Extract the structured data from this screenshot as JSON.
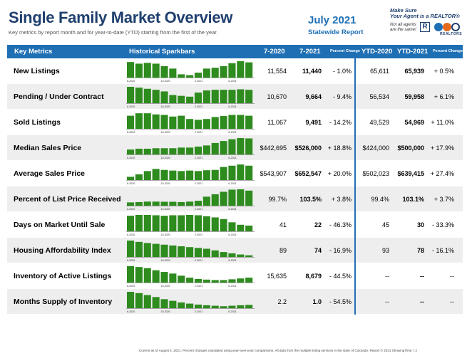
{
  "header": {
    "title": "Single Family Market Overview",
    "subtitle": "Key metrics by report month and for year-to-date (YTD) starting from the first of the year.",
    "report_month": "July 2021",
    "report_scope": "Statewide Report",
    "promo_line1": "Make Sure",
    "promo_line2": "Your Agent is a REALTOR®",
    "promo_line3": "Not all agents are the same!",
    "logo_r": "R",
    "logo_caar_caption": "REALTORS"
  },
  "columns": {
    "metric": "Key Metrics",
    "spark": "Historical Sparkbars",
    "m1": "7-2020",
    "m2": "7-2021",
    "pc": "Percent Change",
    "y1": "YTD-2020",
    "y2": "YTD-2021",
    "ypc": "Percent Change"
  },
  "spark_ticks": [
    "6-2020",
    "10-2020",
    "2-2021",
    "6-2021"
  ],
  "rows": [
    {
      "metric": "New Listings",
      "m1": "11,554",
      "m2": "11,440",
      "pc": "- 1.0%",
      "y1": "65,611",
      "y2": "65,939",
      "ypc": "+ 0.5%",
      "spark": [
        0.95,
        0.85,
        0.9,
        0.85,
        0.7,
        0.55,
        0.2,
        0.15,
        0.3,
        0.55,
        0.6,
        0.7,
        0.88,
        1.0,
        0.93
      ]
    },
    {
      "metric": "Pending / Under Contract",
      "m1": "10,670",
      "m2": "9,664",
      "pc": "- 9.4%",
      "y1": "56,534",
      "y2": "59,958",
      "ypc": "+ 6.1%",
      "spark": [
        1.0,
        0.95,
        0.88,
        0.82,
        0.72,
        0.5,
        0.45,
        0.4,
        0.65,
        0.78,
        0.82,
        0.82,
        0.82,
        0.85,
        0.82
      ]
    },
    {
      "metric": "Sold Listings",
      "m1": "11,067",
      "m2": "9,491",
      "pc": "- 14.2%",
      "y1": "49,529",
      "y2": "54,969",
      "ypc": "+ 11.0%",
      "spark": [
        0.8,
        0.95,
        0.95,
        0.88,
        0.85,
        0.75,
        0.8,
        0.6,
        0.55,
        0.6,
        0.72,
        0.78,
        0.85,
        0.85,
        0.8
      ]
    },
    {
      "metric": "Median Sales Price",
      "m1": "$442,695",
      "m2": "$526,000",
      "pc": "+ 18.8%",
      "y1": "$424,000",
      "y2": "$500,000",
      "ypc": "+ 17.9%",
      "spark": [
        0.3,
        0.35,
        0.35,
        0.38,
        0.38,
        0.38,
        0.42,
        0.42,
        0.48,
        0.55,
        0.7,
        0.82,
        0.93,
        1.0,
        0.98
      ]
    },
    {
      "metric": "Average Sales Price",
      "m1": "$543,907",
      "m2": "$652,547",
      "pc": "+ 20.0%",
      "y1": "$502,023",
      "y2": "$639,415",
      "ypc": "+ 27.4%",
      "spark": [
        0.2,
        0.35,
        0.55,
        0.68,
        0.62,
        0.58,
        0.55,
        0.58,
        0.55,
        0.6,
        0.62,
        0.8,
        0.88,
        0.95,
        0.88
      ]
    },
    {
      "metric": "Percent of List Price Received",
      "m1": "99.7%",
      "m2": "103.5%",
      "pc": "+ 3.8%",
      "y1": "99.4%",
      "y2": "103.1%",
      "ypc": "+ 3.7%",
      "spark": [
        0.2,
        0.22,
        0.25,
        0.25,
        0.24,
        0.24,
        0.22,
        0.25,
        0.3,
        0.55,
        0.7,
        0.85,
        0.98,
        1.0,
        0.92
      ]
    },
    {
      "metric": "Days on Market Until Sale",
      "m1": "41",
      "m2": "22",
      "pc": "- 46.3%",
      "y1": "45",
      "y2": "30",
      "ypc": "- 33.3%",
      "spark": [
        0.95,
        1.0,
        1.0,
        0.98,
        0.95,
        0.98,
        0.98,
        1.0,
        0.98,
        0.92,
        0.85,
        0.75,
        0.55,
        0.4,
        0.35
      ]
    },
    {
      "metric": "Housing Affordability Index",
      "m1": "89",
      "m2": "74",
      "pc": "- 16.9%",
      "y1": "93",
      "y2": "78",
      "ypc": "- 16.1%",
      "spark": [
        1.0,
        0.92,
        0.85,
        0.8,
        0.75,
        0.7,
        0.65,
        0.6,
        0.55,
        0.5,
        0.4,
        0.3,
        0.22,
        0.15,
        0.1
      ]
    },
    {
      "metric": "Inventory of Active Listings",
      "m1": "15,635",
      "m2": "8,679",
      "pc": "- 44.5%",
      "y1": "--",
      "y2": "--",
      "ypc": "--",
      "spark": [
        1.0,
        0.95,
        0.88,
        0.75,
        0.65,
        0.55,
        0.42,
        0.3,
        0.22,
        0.18,
        0.15,
        0.15,
        0.2,
        0.25,
        0.3
      ]
    },
    {
      "metric": "Months Supply of Inventory",
      "m1": "2.2",
      "m2": "1.0",
      "pc": "- 54.5%",
      "y1": "--",
      "y2": "--",
      "ypc": "--",
      "spark": [
        1.0,
        0.92,
        0.8,
        0.68,
        0.55,
        0.45,
        0.35,
        0.28,
        0.22,
        0.18,
        0.15,
        0.12,
        0.15,
        0.18,
        0.2
      ]
    }
  ],
  "footer": "Current as of August 4, 2021. Percent changes calculated using year-over-year comparisons. All data from the multiple listing services in the state of Colorado. Report © 2021 ShowingTime.  |  2",
  "colors": {
    "accent": "#1f6fb5",
    "title": "#1f3f6e",
    "bar": "#2e8b1e"
  }
}
